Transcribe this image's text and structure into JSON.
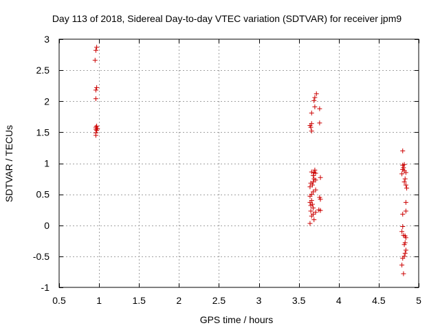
{
  "chart_data": {
    "type": "scatter",
    "title": "Day 113 of 2018, Sidereal Day-to-day VTEC variation (SDTVAR) for receiver jpm9",
    "xlabel": "GPS time / hours",
    "ylabel": "SDTVAR / TECUs",
    "xlim": [
      0.5,
      5
    ],
    "ylim": [
      -1,
      3
    ],
    "xticks": [
      0.5,
      1,
      1.5,
      2,
      2.5,
      3,
      3.5,
      4,
      4.5,
      5
    ],
    "yticks": [
      -1,
      -0.5,
      0,
      0.5,
      1,
      1.5,
      2,
      2.5,
      3
    ],
    "grid": true,
    "marker": "+",
    "color": "#cc0000",
    "series": [
      {
        "name": "SDTVAR",
        "points": [
          [
            0.97,
            2.87
          ],
          [
            0.96,
            2.82
          ],
          [
            0.95,
            2.66
          ],
          [
            0.97,
            2.22
          ],
          [
            0.96,
            2.18
          ],
          [
            0.96,
            2.04
          ],
          [
            0.97,
            1.6
          ],
          [
            0.96,
            1.58
          ],
          [
            0.98,
            1.56
          ],
          [
            0.96,
            1.55
          ],
          [
            0.97,
            1.53
          ],
          [
            0.96,
            1.49
          ],
          [
            0.96,
            1.45
          ],
          [
            3.72,
            2.12
          ],
          [
            3.7,
            2.06
          ],
          [
            3.69,
            2.01
          ],
          [
            3.7,
            1.91
          ],
          [
            3.76,
            1.88
          ],
          [
            3.66,
            1.81
          ],
          [
            3.76,
            1.65
          ],
          [
            3.66,
            1.64
          ],
          [
            3.64,
            1.61
          ],
          [
            3.65,
            1.58
          ],
          [
            3.66,
            1.52
          ],
          [
            3.7,
            0.89
          ],
          [
            3.66,
            0.86
          ],
          [
            3.69,
            0.85
          ],
          [
            3.71,
            0.84
          ],
          [
            3.68,
            0.8
          ],
          [
            3.77,
            0.77
          ],
          [
            3.69,
            0.75
          ],
          [
            3.71,
            0.73
          ],
          [
            3.68,
            0.7
          ],
          [
            3.65,
            0.68
          ],
          [
            3.67,
            0.65
          ],
          [
            3.64,
            0.62
          ],
          [
            3.71,
            0.57
          ],
          [
            3.68,
            0.54
          ],
          [
            3.66,
            0.5
          ],
          [
            3.64,
            0.47
          ],
          [
            3.76,
            0.45
          ],
          [
            3.77,
            0.42
          ],
          [
            3.66,
            0.4
          ],
          [
            3.64,
            0.37
          ],
          [
            3.67,
            0.34
          ],
          [
            3.65,
            0.32
          ],
          [
            3.68,
            0.28
          ],
          [
            3.75,
            0.25
          ],
          [
            3.77,
            0.24
          ],
          [
            3.65,
            0.23
          ],
          [
            3.71,
            0.21
          ],
          [
            3.68,
            0.18
          ],
          [
            3.66,
            0.15
          ],
          [
            3.69,
            0.09
          ],
          [
            3.64,
            0.03
          ],
          [
            4.8,
            1.2
          ],
          [
            4.82,
            0.98
          ],
          [
            4.8,
            0.97
          ],
          [
            4.81,
            0.93
          ],
          [
            4.8,
            0.9
          ],
          [
            4.82,
            0.88
          ],
          [
            4.84,
            0.85
          ],
          [
            4.79,
            0.83
          ],
          [
            4.83,
            0.75
          ],
          [
            4.82,
            0.7
          ],
          [
            4.84,
            0.65
          ],
          [
            4.85,
            0.6
          ],
          [
            4.84,
            0.37
          ],
          [
            4.84,
            0.23
          ],
          [
            4.8,
            0.18
          ],
          [
            4.8,
            -0.02
          ],
          [
            4.79,
            -0.1
          ],
          [
            4.81,
            -0.16
          ],
          [
            4.83,
            -0.17
          ],
          [
            4.84,
            -0.2
          ],
          [
            4.83,
            -0.28
          ],
          [
            4.82,
            -0.31
          ],
          [
            4.84,
            -0.4
          ],
          [
            4.83,
            -0.45
          ],
          [
            4.82,
            -0.5
          ],
          [
            4.8,
            -0.53
          ],
          [
            4.79,
            -0.64
          ],
          [
            4.81,
            -0.78
          ]
        ]
      }
    ]
  }
}
